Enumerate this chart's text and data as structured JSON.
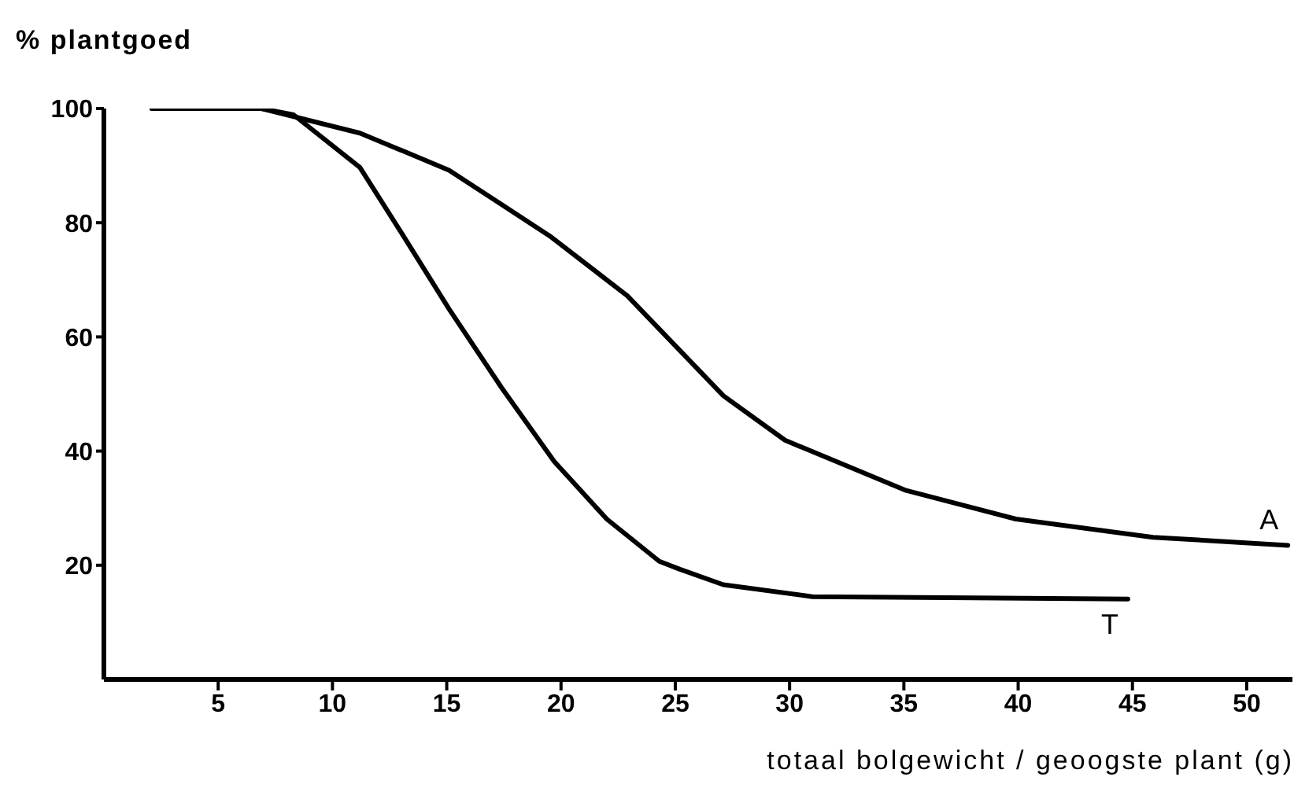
{
  "chart_data": {
    "type": "line",
    "xlabel": "totaal bolgewicht / geoogste plant (g)",
    "ylabel": "% plantgoed",
    "xlim": [
      0,
      52
    ],
    "ylim": [
      0,
      100
    ],
    "xticks": [
      5,
      10,
      15,
      20,
      25,
      30,
      35,
      40,
      45,
      50
    ],
    "yticks": [
      20,
      40,
      60,
      80,
      100
    ],
    "grid": false,
    "legend": false,
    "marker": "none",
    "line_style": "solid",
    "series": [
      {
        "name": "A",
        "color": "#000000",
        "x": [
          2.1,
          6.9,
          11.2,
          15.1,
          19.5,
          22.9,
          27.1,
          29.8,
          35.1,
          39.9,
          45.9,
          51.8
        ],
        "values": [
          100,
          100,
          95.7,
          89.2,
          77.7,
          67.2,
          49.7,
          41.9,
          33.1,
          28.1,
          24.9,
          23.5
        ]
      },
      {
        "name": "T",
        "color": "#000000",
        "x": [
          2.1,
          6.9,
          8.3,
          11.2,
          13.1,
          15.1,
          17.4,
          19.7,
          22,
          24.3,
          25.2,
          27.1,
          31,
          44.8
        ],
        "values": [
          100,
          100,
          98.9,
          89.7,
          77.7,
          64.9,
          51.1,
          38.2,
          28.1,
          20.7,
          19.3,
          16.6,
          14.5,
          14.1
        ]
      }
    ]
  }
}
